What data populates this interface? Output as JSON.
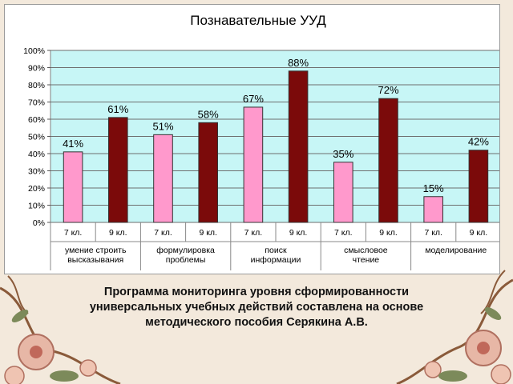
{
  "chart_data": {
    "type": "bar",
    "title": "Познавательные УУД",
    "xlabel": "",
    "ylabel": "",
    "ylim": [
      0,
      100
    ],
    "y_ticks": [
      "0%",
      "10%",
      "20%",
      "30%",
      "40%",
      "50%",
      "60%",
      "70%",
      "80%",
      "90%",
      "100%"
    ],
    "grid": true,
    "legend": "none",
    "plot_background": "#c7f6f6",
    "groups": [
      {
        "label_lines": [
          "умение строить",
          "высказывания"
        ],
        "categories": [
          "7 кл.",
          "9 кл."
        ]
      },
      {
        "label_lines": [
          "формулировка",
          "проблемы"
        ],
        "categories": [
          "7 кл.",
          "9 кл."
        ]
      },
      {
        "label_lines": [
          "поиск",
          "информации"
        ],
        "categories": [
          "7 кл.",
          "9 кл."
        ]
      },
      {
        "label_lines": [
          "смысловое",
          "чтение"
        ],
        "categories": [
          "7 кл.",
          "9 кл."
        ]
      },
      {
        "label_lines": [
          "моделирование"
        ],
        "categories": [
          "7 кл.",
          "9 кл."
        ]
      }
    ],
    "values": [
      41,
      61,
      51,
      58,
      67,
      88,
      35,
      72,
      15,
      42
    ],
    "data_labels": [
      "41%",
      "61%",
      "51%",
      "58%",
      "67%",
      "88%",
      "35%",
      "72%",
      "15%",
      "42%"
    ],
    "bar_colors": {
      "7 кл.": "#ff99cc",
      "9 кл.": "#7b0a0a"
    }
  },
  "caption": {
    "lines": [
      "Программа мониторинга уровня сформированности",
      "универсальных учебных действий составлена   на основе",
      "методического пособия  Серякина А.В."
    ]
  }
}
